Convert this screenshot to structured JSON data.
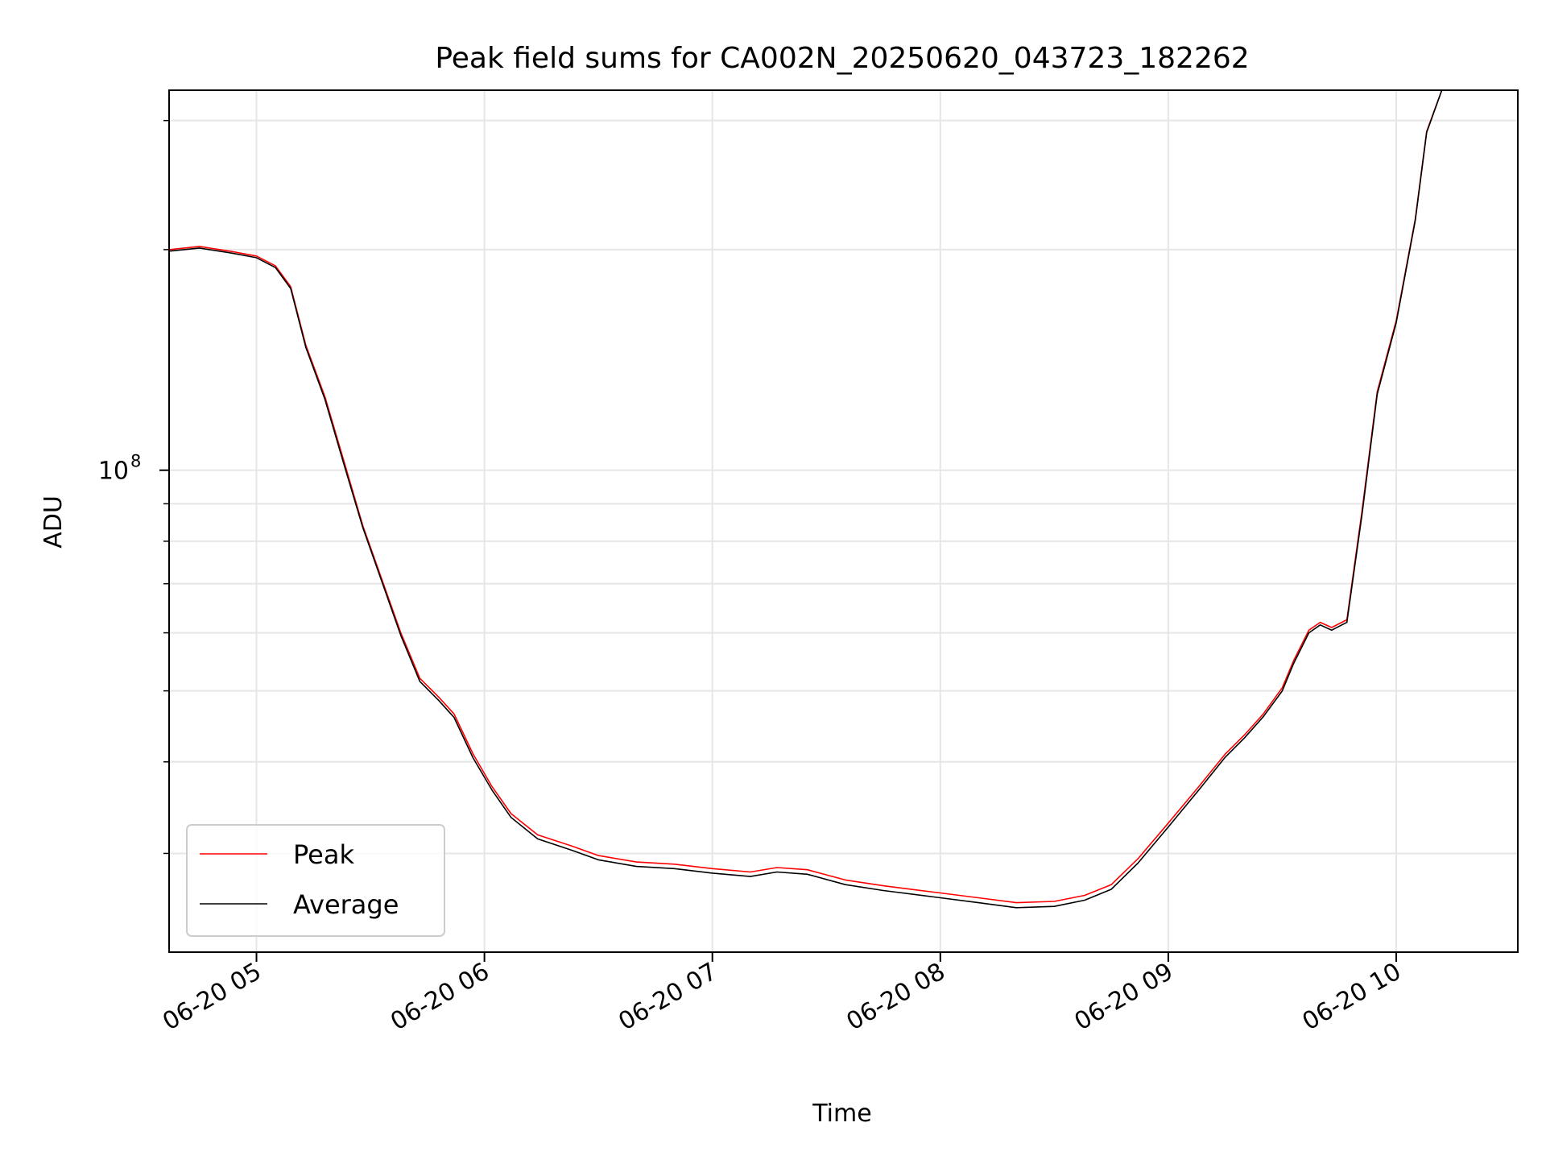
{
  "chart_data": {
    "type": "line",
    "title": "Peak field sums for CA002N_20250620_043723_182262",
    "xlabel": "Time",
    "ylabel": "ADU",
    "yscale": "log",
    "ytick_labels": [
      {
        "value": 100000000,
        "base": "10",
        "exponent": "8"
      }
    ],
    "xticks": [
      {
        "label": "06-20 05",
        "time": "2025-06-20T05:00"
      },
      {
        "label": "06-20 06",
        "time": "2025-06-20T06:00"
      },
      {
        "label": "06-20 07",
        "time": "2025-06-20T07:00"
      },
      {
        "label": "06-20 08",
        "time": "2025-06-20T08:00"
      },
      {
        "label": "06-20 09",
        "time": "2025-06-20T09:00"
      },
      {
        "label": "06-20 10",
        "time": "2025-06-20T10:00"
      }
    ],
    "xlim": [
      "2025-06-20T04:37",
      "2025-06-20T10:32"
    ],
    "ylim": [
      22000000,
      330000000
    ],
    "grid": true,
    "legend_position": "lower-left",
    "series": [
      {
        "name": "Peak",
        "color": "#ff0000",
        "points": [
          [
            "2025-06-20T04:37",
            200000000
          ],
          [
            "2025-06-20T04:45",
            202000000
          ],
          [
            "2025-06-20T04:53",
            199000000
          ],
          [
            "2025-06-20T05:00",
            196000000
          ],
          [
            "2025-06-20T05:05",
            190000000
          ],
          [
            "2025-06-20T05:09",
            178000000
          ],
          [
            "2025-06-20T05:13",
            148000000
          ],
          [
            "2025-06-20T05:18",
            126000000
          ],
          [
            "2025-06-20T05:23",
            103000000
          ],
          [
            "2025-06-20T05:28",
            84000000
          ],
          [
            "2025-06-20T05:33",
            71000000
          ],
          [
            "2025-06-20T05:38",
            60000000
          ],
          [
            "2025-06-20T05:43",
            52000000
          ],
          [
            "2025-06-20T05:48",
            49000000
          ],
          [
            "2025-06-20T05:52",
            46500000
          ],
          [
            "2025-06-20T05:57",
            41000000
          ],
          [
            "2025-06-20T06:02",
            37000000
          ],
          [
            "2025-06-20T06:07",
            34000000
          ],
          [
            "2025-06-20T06:14",
            31800000
          ],
          [
            "2025-06-20T06:23",
            30700000
          ],
          [
            "2025-06-20T06:30",
            29800000
          ],
          [
            "2025-06-20T06:40",
            29200000
          ],
          [
            "2025-06-20T06:50",
            29000000
          ],
          [
            "2025-06-20T07:00",
            28600000
          ],
          [
            "2025-06-20T07:10",
            28300000
          ],
          [
            "2025-06-20T07:17",
            28700000
          ],
          [
            "2025-06-20T07:25",
            28500000
          ],
          [
            "2025-06-20T07:35",
            27600000
          ],
          [
            "2025-06-20T07:45",
            27100000
          ],
          [
            "2025-06-20T08:00",
            26500000
          ],
          [
            "2025-06-20T08:10",
            26100000
          ],
          [
            "2025-06-20T08:20",
            25700000
          ],
          [
            "2025-06-20T08:30",
            25800000
          ],
          [
            "2025-06-20T08:38",
            26300000
          ],
          [
            "2025-06-20T08:45",
            27200000
          ],
          [
            "2025-06-20T08:52",
            29500000
          ],
          [
            "2025-06-20T09:00",
            33000000
          ],
          [
            "2025-06-20T09:08",
            37000000
          ],
          [
            "2025-06-20T09:15",
            41000000
          ],
          [
            "2025-06-20T09:20",
            43500000
          ],
          [
            "2025-06-20T09:25",
            46500000
          ],
          [
            "2025-06-20T09:30",
            50500000
          ],
          [
            "2025-06-20T09:33",
            55000000
          ],
          [
            "2025-06-20T09:37",
            60500000
          ],
          [
            "2025-06-20T09:40",
            62000000
          ],
          [
            "2025-06-20T09:43",
            61000000
          ],
          [
            "2025-06-20T09:47",
            62500000
          ],
          [
            "2025-06-20T09:51",
            88000000
          ],
          [
            "2025-06-20T09:55",
            128000000
          ],
          [
            "2025-06-20T10:00",
            160000000
          ],
          [
            "2025-06-20T10:05",
            220000000
          ],
          [
            "2025-06-20T10:08",
            290000000
          ],
          [
            "2025-06-20T10:12",
            330000000
          ]
        ]
      },
      {
        "name": "Average",
        "color": "#000000",
        "points": [
          [
            "2025-06-20T04:37",
            199000000
          ],
          [
            "2025-06-20T04:45",
            201000000
          ],
          [
            "2025-06-20T04:53",
            198000000
          ],
          [
            "2025-06-20T05:00",
            195000000
          ],
          [
            "2025-06-20T05:05",
            189000000
          ],
          [
            "2025-06-20T05:09",
            177000000
          ],
          [
            "2025-06-20T05:13",
            147000000
          ],
          [
            "2025-06-20T05:18",
            125000000
          ],
          [
            "2025-06-20T05:23",
            102000000
          ],
          [
            "2025-06-20T05:28",
            83500000
          ],
          [
            "2025-06-20T05:33",
            70500000
          ],
          [
            "2025-06-20T05:38",
            59500000
          ],
          [
            "2025-06-20T05:43",
            51500000
          ],
          [
            "2025-06-20T05:48",
            48500000
          ],
          [
            "2025-06-20T05:52",
            46000000
          ],
          [
            "2025-06-20T05:57",
            40500000
          ],
          [
            "2025-06-20T06:02",
            36600000
          ],
          [
            "2025-06-20T06:07",
            33600000
          ],
          [
            "2025-06-20T06:14",
            31400000
          ],
          [
            "2025-06-20T06:23",
            30300000
          ],
          [
            "2025-06-20T06:30",
            29400000
          ],
          [
            "2025-06-20T06:40",
            28800000
          ],
          [
            "2025-06-20T06:50",
            28600000
          ],
          [
            "2025-06-20T07:00",
            28200000
          ],
          [
            "2025-06-20T07:10",
            27900000
          ],
          [
            "2025-06-20T07:17",
            28300000
          ],
          [
            "2025-06-20T07:25",
            28100000
          ],
          [
            "2025-06-20T07:35",
            27200000
          ],
          [
            "2025-06-20T07:45",
            26700000
          ],
          [
            "2025-06-20T08:00",
            26100000
          ],
          [
            "2025-06-20T08:10",
            25700000
          ],
          [
            "2025-06-20T08:20",
            25300000
          ],
          [
            "2025-06-20T08:30",
            25400000
          ],
          [
            "2025-06-20T08:38",
            25900000
          ],
          [
            "2025-06-20T08:45",
            26800000
          ],
          [
            "2025-06-20T08:52",
            29100000
          ],
          [
            "2025-06-20T09:00",
            32600000
          ],
          [
            "2025-06-20T09:08",
            36600000
          ],
          [
            "2025-06-20T09:15",
            40600000
          ],
          [
            "2025-06-20T09:20",
            43100000
          ],
          [
            "2025-06-20T09:25",
            46100000
          ],
          [
            "2025-06-20T09:30",
            50000000
          ],
          [
            "2025-06-20T09:33",
            54500000
          ],
          [
            "2025-06-20T09:37",
            60000000
          ],
          [
            "2025-06-20T09:40",
            61500000
          ],
          [
            "2025-06-20T09:43",
            60500000
          ],
          [
            "2025-06-20T09:47",
            62000000
          ],
          [
            "2025-06-20T09:51",
            87000000
          ],
          [
            "2025-06-20T09:55",
            127000000
          ],
          [
            "2025-06-20T10:00",
            159000000
          ],
          [
            "2025-06-20T10:05",
            219000000
          ],
          [
            "2025-06-20T10:08",
            289000000
          ],
          [
            "2025-06-20T10:12",
            330000000
          ]
        ]
      }
    ]
  }
}
